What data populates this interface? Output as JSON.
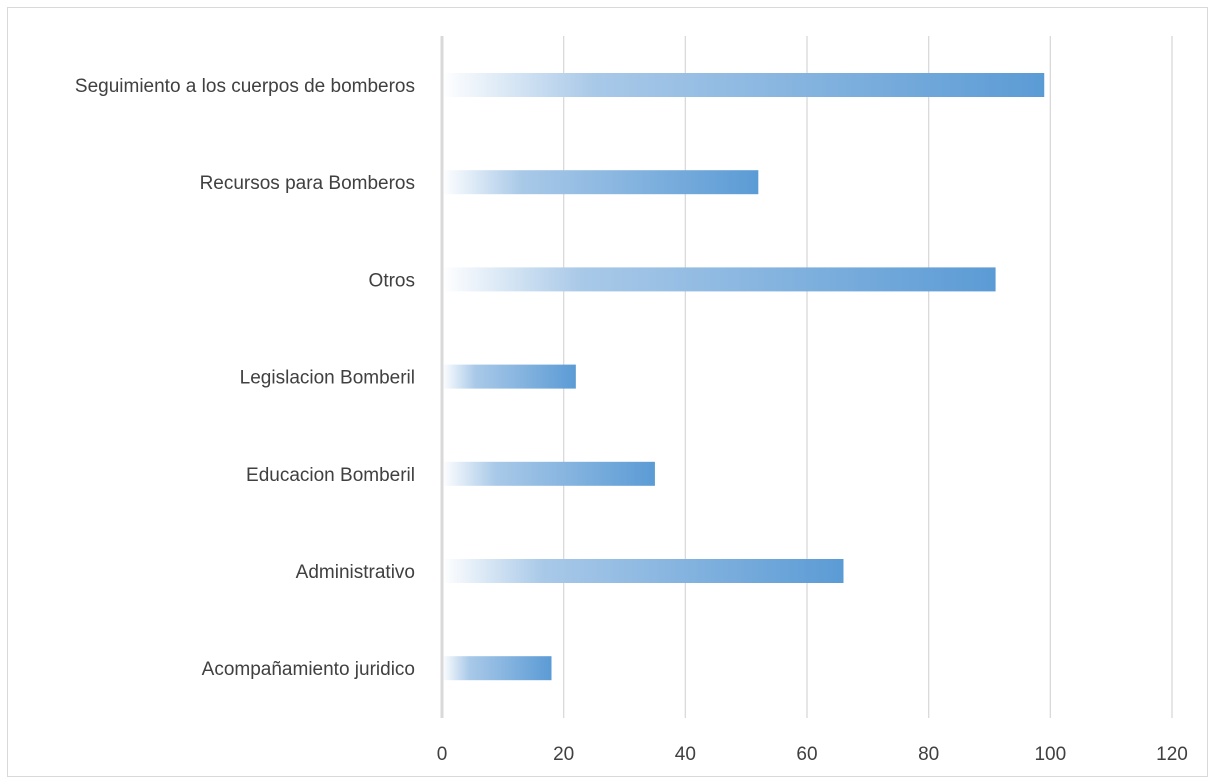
{
  "chart_data": {
    "type": "bar",
    "orientation": "horizontal",
    "categories": [
      "Seguimiento a los cuerpos de bomberos",
      "Recursos para Bomberos",
      "Otros",
      "Legislacion Bomberil",
      "Educacion Bomberil",
      "Administrativo",
      "Acompañamiento juridico"
    ],
    "values": [
      99,
      52,
      91,
      22,
      35,
      66,
      18
    ],
    "x_ticks": [
      "0",
      "20",
      "40",
      "60",
      "80",
      "100",
      "120"
    ],
    "xlim": [
      0,
      120
    ],
    "grid": "vertical",
    "legend": "none",
    "colors": {
      "bar": "#5b9bd5",
      "bar_fade": "#ffffff",
      "grid": "#d9d9d9",
      "axis": "#d9d9d9",
      "text": "#404040"
    }
  }
}
